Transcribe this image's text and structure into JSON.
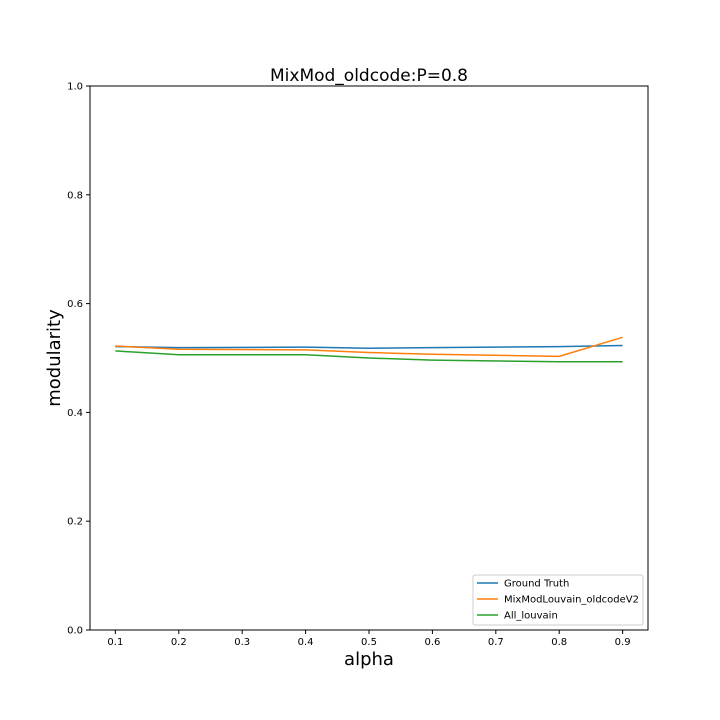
{
  "chart_data": {
    "type": "line",
    "title": "MixMod_oldcode:P=0.8",
    "xlabel": "alpha",
    "ylabel": "modularity",
    "x": [
      0.1,
      0.2,
      0.3,
      0.4,
      0.5,
      0.6,
      0.7,
      0.8,
      0.9
    ],
    "x_ticks": [
      "0.1",
      "0.2",
      "0.3",
      "0.4",
      "0.5",
      "0.6",
      "0.7",
      "0.8",
      "0.9"
    ],
    "xlim": [
      0.06,
      0.94
    ],
    "ylim": [
      0.0,
      1.0
    ],
    "y_ticks": [
      "0.0",
      "0.2",
      "0.4",
      "0.6",
      "0.8",
      "1.0"
    ],
    "grid": false,
    "legend_position": "lower-right",
    "series": [
      {
        "name": "Ground Truth",
        "color": "#1f77b4",
        "x": [
          0.1,
          0.2,
          0.4,
          0.5,
          0.6,
          0.8,
          0.9
        ],
        "values": [
          0.521,
          0.519,
          0.52,
          0.518,
          0.519,
          0.521,
          0.523
        ]
      },
      {
        "name": "MixModLouvain_oldcodeV2",
        "color": "#ff7f0e",
        "x": [
          0.1,
          0.2,
          0.4,
          0.5,
          0.6,
          0.8,
          0.9
        ],
        "values": [
          0.522,
          0.516,
          0.515,
          0.51,
          0.507,
          0.503,
          0.538
        ]
      },
      {
        "name": "All_louvain",
        "color": "#2ca02c",
        "x": [
          0.1,
          0.2,
          0.4,
          0.5,
          0.6,
          0.8,
          0.9
        ],
        "values": [
          0.513,
          0.506,
          0.506,
          0.5,
          0.496,
          0.493,
          0.493
        ]
      }
    ]
  }
}
